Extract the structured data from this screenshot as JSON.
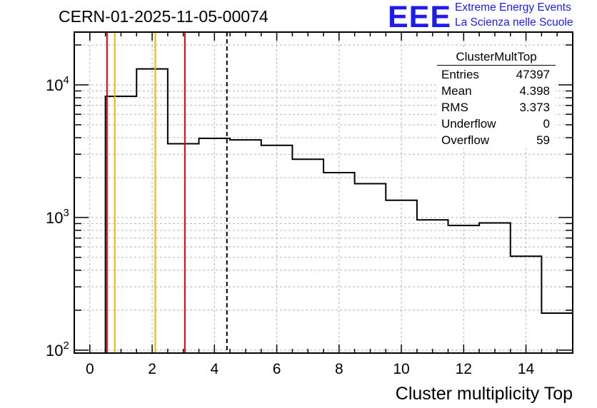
{
  "header": {
    "run_label": "CERN-01-2025-11-05-00074",
    "logo_text": "EEE",
    "logo_line1": "Extreme Energy Events",
    "logo_line2": "La Scienza nelle Scuole"
  },
  "stats_box": {
    "title": "ClusterMultTop",
    "rows": [
      {
        "label": "Entries",
        "value": "47397"
      },
      {
        "label": "Mean",
        "value": "4.398"
      },
      {
        "label": "RMS",
        "value": "3.373"
      },
      {
        "label": "Underflow",
        "value": "0"
      },
      {
        "label": "Overflow",
        "value": "59"
      }
    ]
  },
  "chart_data": {
    "type": "histogram",
    "title": "CERN-01-2025-11-05-00074",
    "xlabel": "Cluster multiplicity Top",
    "ylabel": "",
    "y_scale": "log",
    "xlim": [
      -0.5,
      15.5
    ],
    "ylim": [
      95,
      25000
    ],
    "grid": true,
    "x_ticks": [
      0,
      2,
      4,
      6,
      8,
      10,
      12,
      14
    ],
    "y_ticks": [
      {
        "value": 100,
        "base": "10",
        "exp": "2"
      },
      {
        "value": 1000,
        "base": "10",
        "exp": "3"
      },
      {
        "value": 10000,
        "base": "10",
        "exp": "4"
      }
    ],
    "bins": [
      {
        "low": 0.5,
        "high": 1.5,
        "count": 8200
      },
      {
        "low": 1.5,
        "high": 2.5,
        "count": 13200
      },
      {
        "low": 2.5,
        "high": 3.5,
        "count": 3600
      },
      {
        "low": 3.5,
        "high": 4.5,
        "count": 3950
      },
      {
        "low": 4.5,
        "high": 5.5,
        "count": 3850
      },
      {
        "low": 5.5,
        "high": 6.5,
        "count": 3500
      },
      {
        "low": 6.5,
        "high": 7.5,
        "count": 2750
      },
      {
        "low": 7.5,
        "high": 8.5,
        "count": 2180
      },
      {
        "low": 8.5,
        "high": 9.5,
        "count": 1800
      },
      {
        "low": 9.5,
        "high": 10.5,
        "count": 1350
      },
      {
        "low": 10.5,
        "high": 11.5,
        "count": 960
      },
      {
        "low": 11.5,
        "high": 12.5,
        "count": 870
      },
      {
        "low": 12.5,
        "high": 13.5,
        "count": 910
      },
      {
        "low": 13.5,
        "high": 14.5,
        "count": 510
      },
      {
        "low": 14.5,
        "high": 15.5,
        "count": 190
      }
    ],
    "vertical_lines": [
      {
        "x": 0.55,
        "color": "#e00000",
        "style": "solid"
      },
      {
        "x": 0.8,
        "color": "#f0b400",
        "style": "solid"
      },
      {
        "x": 2.1,
        "color": "#f0b400",
        "style": "solid"
      },
      {
        "x": 3.05,
        "color": "#e00000",
        "style": "solid"
      },
      {
        "x": 4.4,
        "color": "#000000",
        "style": "dashed"
      }
    ]
  }
}
